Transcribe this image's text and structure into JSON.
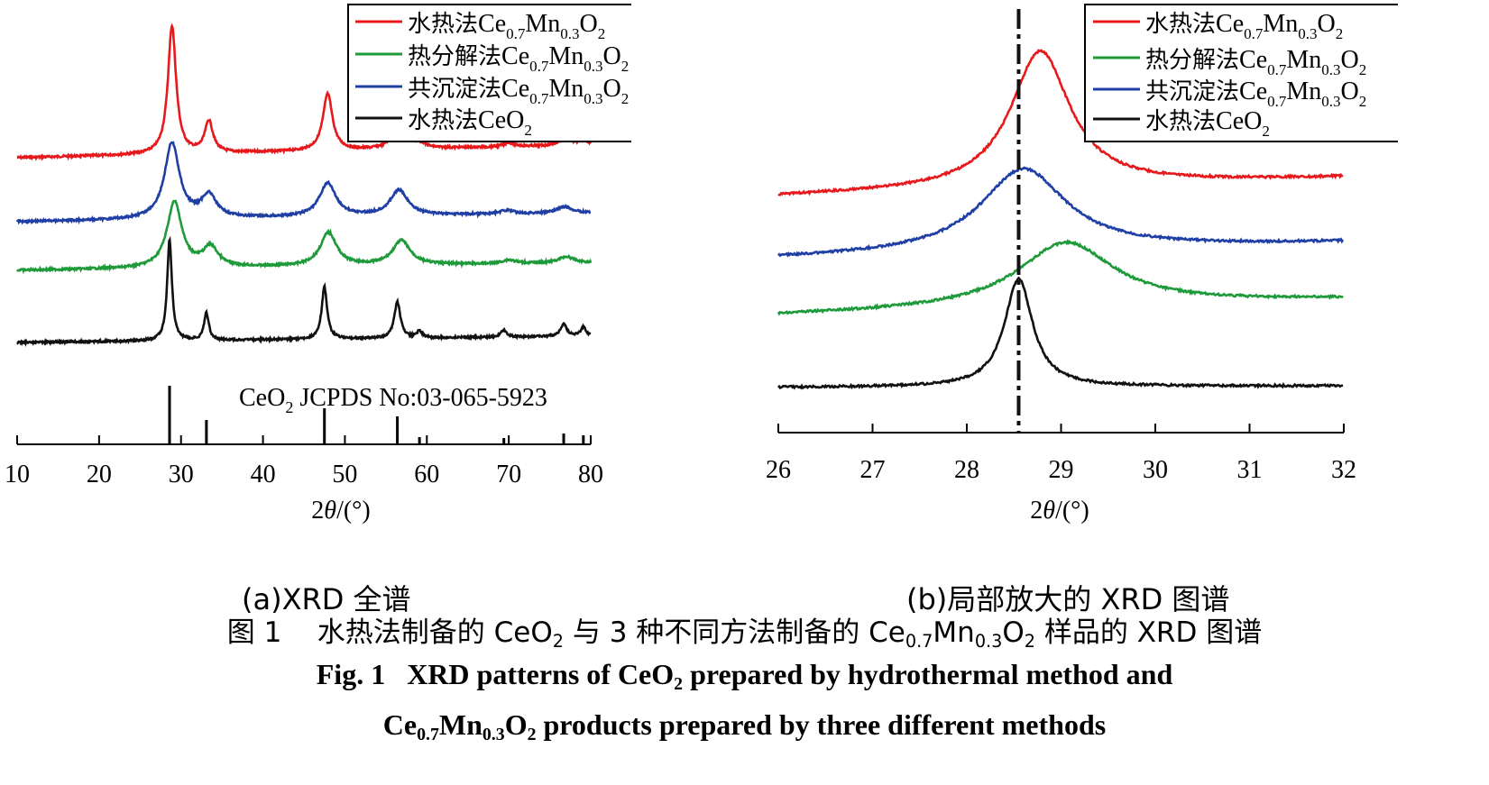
{
  "chart_data": [
    {
      "panel": "a",
      "type": "line",
      "xlabel": "2θ/(°)",
      "xlim": [
        10,
        80
      ],
      "xticks": [
        10,
        20,
        30,
        40,
        50,
        60,
        70,
        80
      ],
      "legend_position": "top-right",
      "series": [
        {
          "name": "水热法Ce0.7Mn0.3O2",
          "color": "#e8191c",
          "baseline": 175,
          "slope": -0.2,
          "peaks": [
            [
              28.9,
              142,
              0.6
            ],
            [
              33.4,
              35,
              0.6
            ],
            [
              47.9,
              63,
              0.7
            ],
            [
              56.8,
              45,
              0.8
            ],
            [
              59.4,
              4,
              0.6
            ],
            [
              70.0,
              5,
              0.7
            ],
            [
              76.9,
              9,
              0.8
            ],
            [
              79.2,
              5,
              0.7
            ]
          ]
        },
        {
          "name": "热分解法Ce0.7Mn0.3O2",
          "color": "#1f9a3b",
          "baseline": 300,
          "slope": -0.12,
          "peaks": [
            [
              29.2,
              73,
              1.1
            ],
            [
              33.6,
              22,
              1.1
            ],
            [
              48.0,
              37,
              1.2
            ],
            [
              56.9,
              27,
              1.3
            ],
            [
              70.0,
              4,
              1.0
            ],
            [
              77.0,
              7,
              1.1
            ]
          ]
        },
        {
          "name": "共沉淀法Ce0.7Mn0.3O2",
          "color": "#1f3fa5",
          "baseline": 246,
          "slope": -0.14,
          "peaks": [
            [
              28.9,
              84,
              1.1
            ],
            [
              33.4,
              25,
              1.1
            ],
            [
              47.9,
              37,
              1.2
            ],
            [
              56.6,
              28,
              1.3
            ],
            [
              69.8,
              4,
              1.0
            ],
            [
              76.8,
              7,
              1.1
            ]
          ]
        },
        {
          "name": "水热法CeO2",
          "color": "#111111",
          "baseline": 380,
          "slope": -0.1,
          "peaks": [
            [
              28.6,
              112,
              0.35
            ],
            [
              33.1,
              30,
              0.35
            ],
            [
              47.5,
              58,
              0.4
            ],
            [
              56.4,
              40,
              0.45
            ],
            [
              59.1,
              8,
              0.35
            ],
            [
              69.4,
              8,
              0.4
            ],
            [
              76.7,
              14,
              0.45
            ],
            [
              79.1,
              10,
              0.4
            ]
          ]
        }
      ],
      "reference": {
        "label": "CeO2 JCPDS No:03-065-5923",
        "sticks": [
          [
            28.6,
            65
          ],
          [
            33.1,
            27
          ],
          [
            47.5,
            40
          ],
          [
            56.4,
            31
          ],
          [
            59.1,
            8
          ],
          [
            69.4,
            7
          ],
          [
            76.7,
            12
          ],
          [
            79.1,
            10
          ]
        ]
      }
    },
    {
      "panel": "b",
      "type": "line",
      "xlabel": "2θ/(°)",
      "xlim": [
        26,
        32
      ],
      "xticks": [
        26,
        27,
        28,
        29,
        30,
        31,
        32
      ],
      "reference_line_x": 28.55,
      "legend_position": "top-right",
      "series": [
        {
          "name": "水热法Ce0.7Mn0.3O2",
          "color": "#e8191c",
          "baseline": 218,
          "slope": -3.5,
          "peak": [
            28.78,
            152,
            0.38
          ]
        },
        {
          "name": "热分解法Ce0.7Mn0.3O2",
          "color": "#1f9a3b",
          "baseline": 350,
          "slope": -3,
          "peak": [
            29.05,
            72,
            0.62
          ]
        },
        {
          "name": "共沉淀法Ce0.7Mn0.3O2",
          "color": "#1f3fa5",
          "baseline": 287,
          "slope": -3,
          "peak": [
            28.6,
            92,
            0.55
          ]
        },
        {
          "name": "水热法CeO2",
          "color": "#111111",
          "baseline": 430,
          "slope": -0.3,
          "peak": [
            28.55,
            120,
            0.18
          ]
        }
      ]
    }
  ],
  "captions": {
    "sub_a": "(a)XRD 全谱",
    "sub_b": "(b)局部放大的 XRD 图谱",
    "zh_fig": "图 1",
    "zh_a": "水热法制备的 CeO",
    "zh_b": "与 3 种不同方法制备的 Ce",
    "zh_c": "样品的 XRD 图谱",
    "en_fig": "Fig. 1",
    "en_a": "XRD patterns of CeO",
    "en_b": "prepared by hydrothermal method and",
    "en_c": "products prepared by three different methods"
  }
}
